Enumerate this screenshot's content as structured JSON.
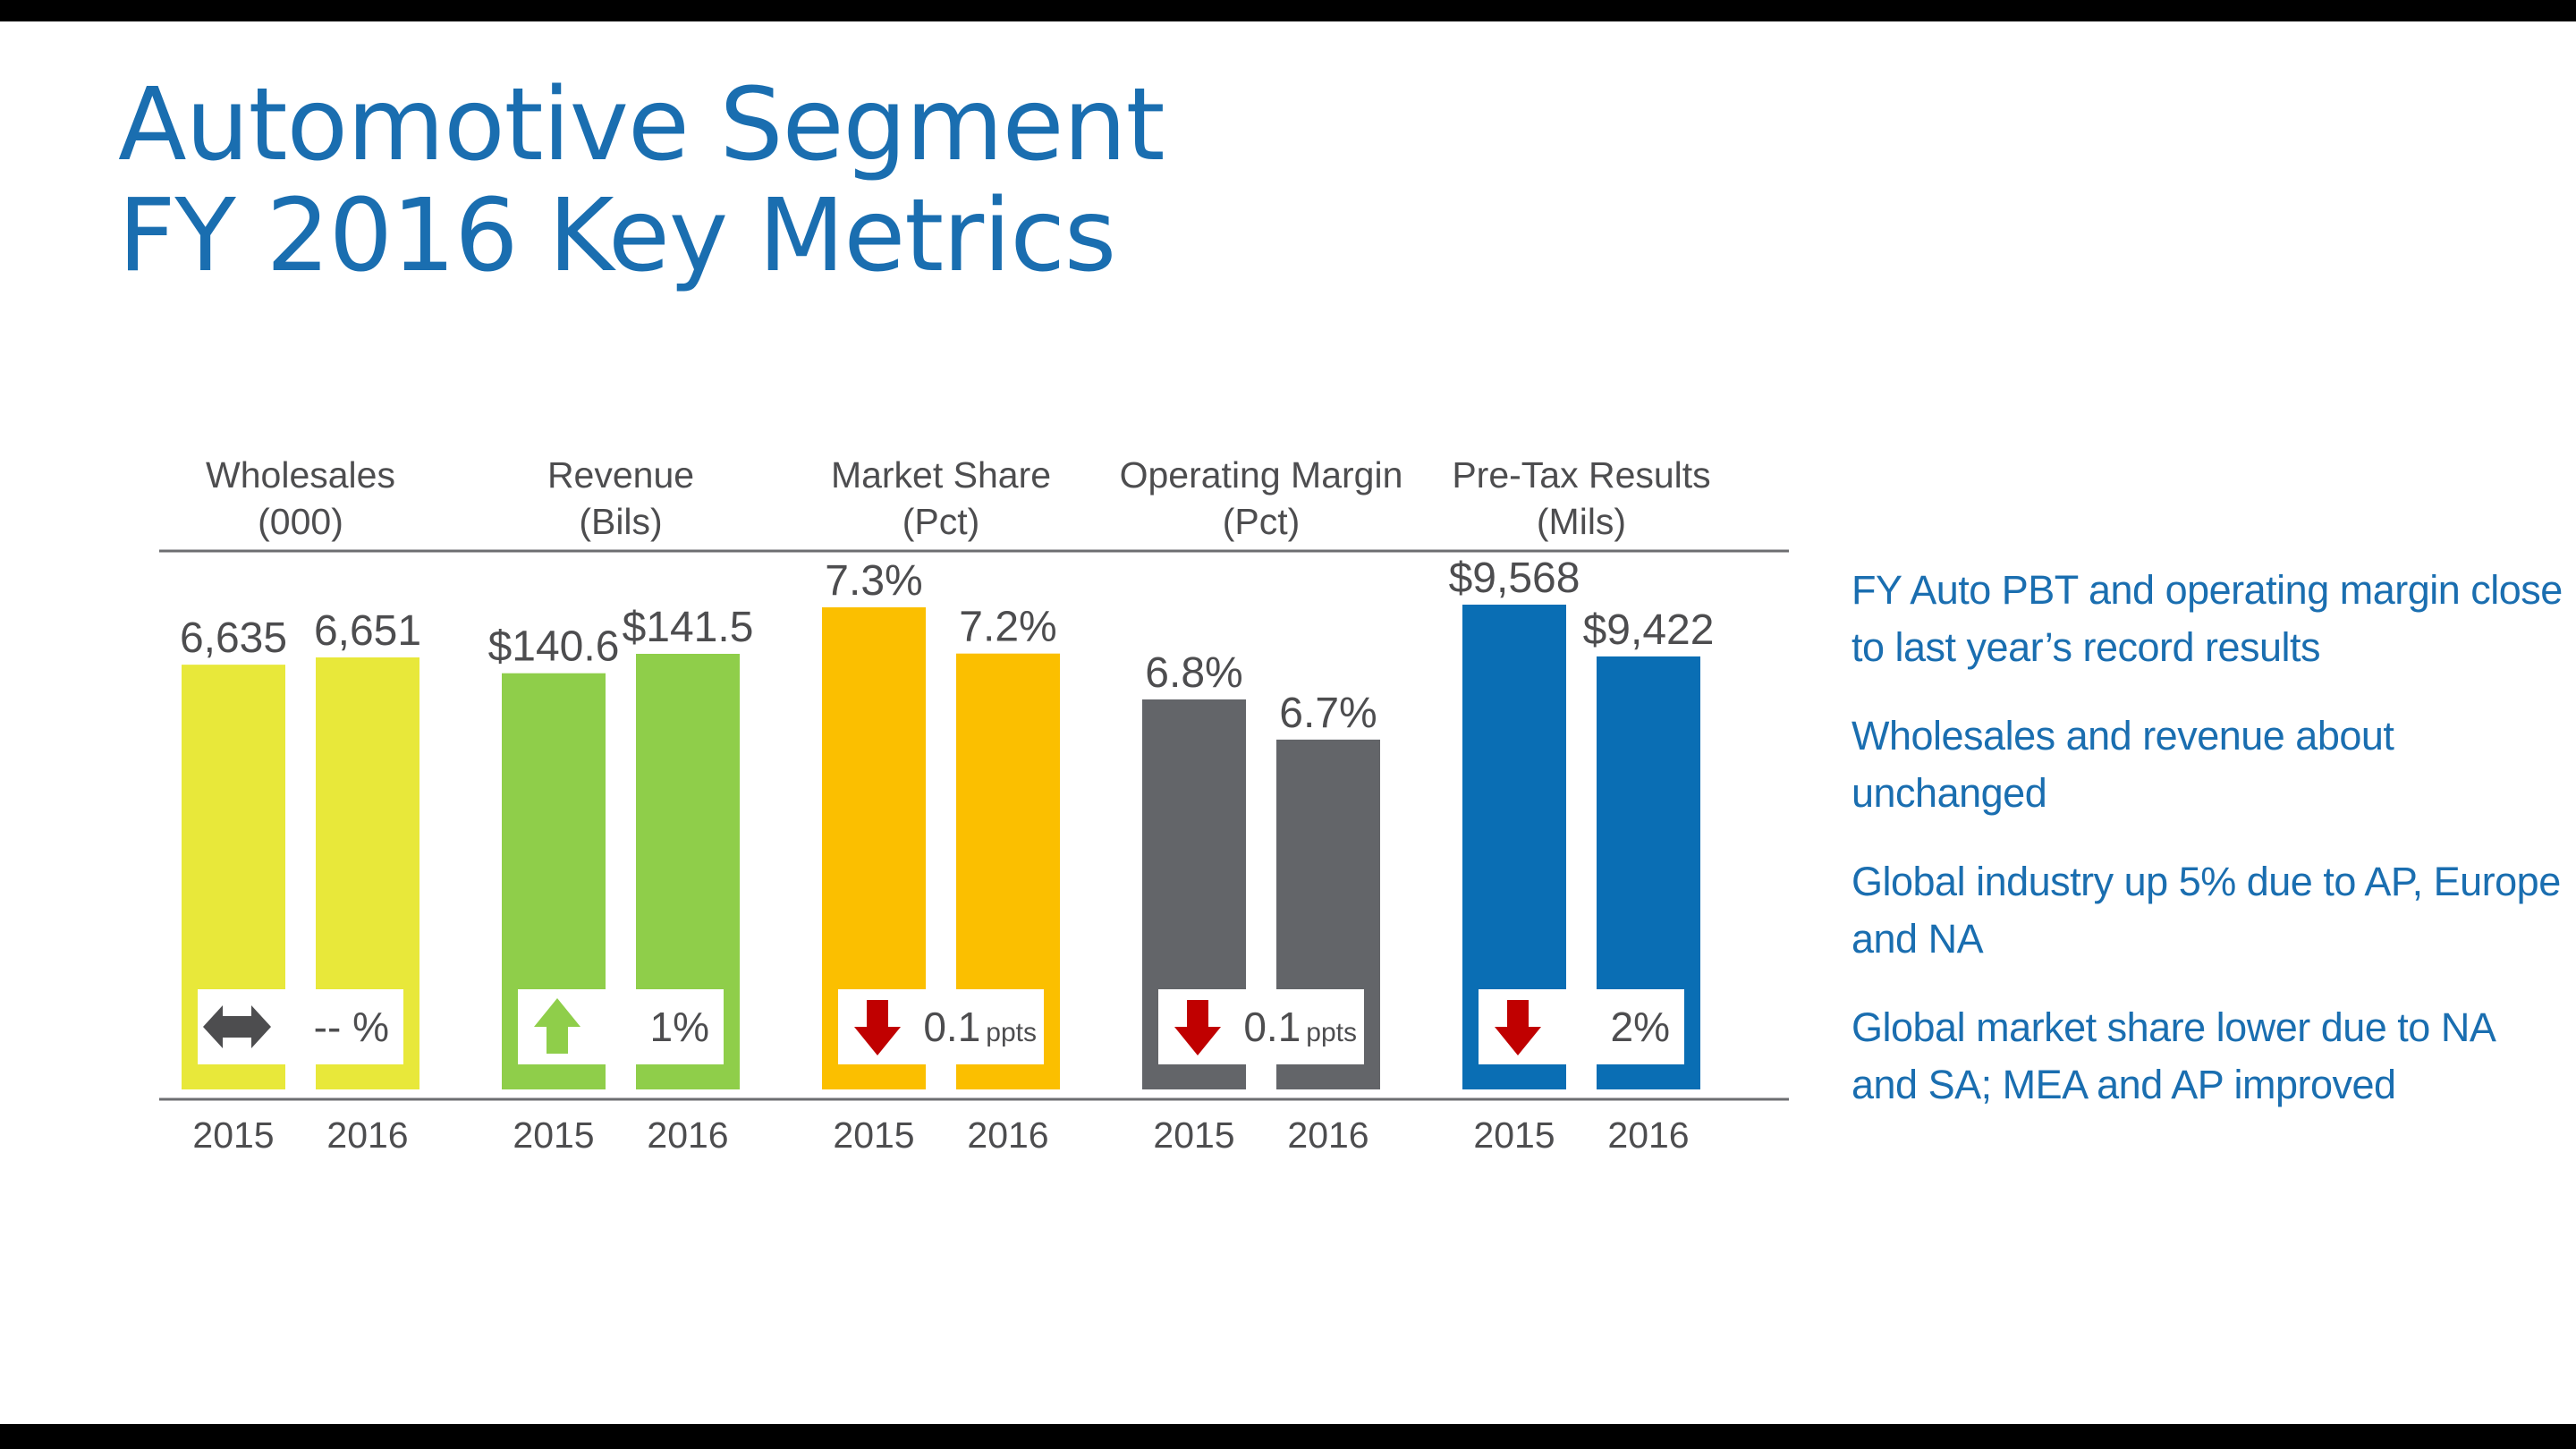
{
  "title": {
    "line1": "Automotive Segment",
    "line2": "FY 2016 Key Metrics"
  },
  "bullets": [
    "FY Auto PBT and operating margin close to last year’s record results",
    "Wholesales and revenue about unchanged",
    "Global industry up 5% due to AP, Europe and NA",
    "Global market share lower due to NA and SA; MEA and AP improved"
  ],
  "chart_data": {
    "type": "bar",
    "categories": [
      "2015",
      "2016"
    ],
    "panels": [
      {
        "id": "wholesales",
        "title": "Wholesales",
        "unit": "(000)",
        "values": [
          6635,
          6651
        ],
        "value_labels": [
          "6,635",
          "6,651"
        ],
        "color": "#e8e83a",
        "change_icon": "double-arrow-icon",
        "change_icon_color": "#4d4d4f",
        "change_value": "-- %",
        "change_unit": ""
      },
      {
        "id": "revenue",
        "title": "Revenue",
        "unit": "(Bils)",
        "values": [
          140.6,
          141.5
        ],
        "value_labels": [
          "$140.6",
          "$141.5"
        ],
        "color": "#8fce4a",
        "change_icon": "up-arrow-icon",
        "change_icon_color": "#8fce4a",
        "change_value": "1%",
        "change_unit": ""
      },
      {
        "id": "market-share",
        "title": "Market Share",
        "unit": "(Pct)",
        "values": [
          7.3,
          7.2
        ],
        "value_labels": [
          "7.3%",
          "7.2%"
        ],
        "color": "#fbbf00",
        "change_icon": "down-arrow-icon",
        "change_icon_color": "#c00000",
        "change_value": "0.1",
        "change_unit": "ppts"
      },
      {
        "id": "operating-margin",
        "title": "Operating Margin",
        "unit": "(Pct)",
        "values": [
          6.8,
          6.7
        ],
        "value_labels": [
          "6.8%",
          "6.7%"
        ],
        "color": "#636569",
        "change_icon": "down-arrow-icon",
        "change_icon_color": "#c00000",
        "change_value": "0.1",
        "change_unit": "ppts"
      },
      {
        "id": "pre-tax-results",
        "title": "Pre-Tax Results",
        "unit": "(Mils)",
        "values": [
          9568,
          9422
        ],
        "value_labels": [
          "$9,568",
          "$9,422"
        ],
        "color": "#0a6eb4",
        "change_icon": "down-arrow-icon",
        "change_icon_color": "#c00000",
        "change_value": "2%",
        "change_unit": ""
      }
    ]
  }
}
